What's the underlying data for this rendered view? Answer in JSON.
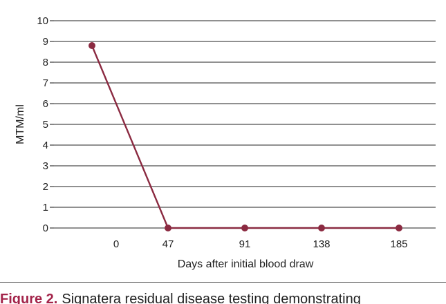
{
  "chart_data": {
    "type": "line",
    "xlabel": "Days after initial blood draw",
    "ylabel": "MTM/ml",
    "categories": [
      "",
      "0",
      "47",
      "91",
      "138",
      "185"
    ],
    "ylim": [
      0,
      10
    ],
    "yticks": [
      0,
      1,
      2,
      3,
      4,
      5,
      6,
      7,
      8,
      9,
      10
    ],
    "grid": "horizontal",
    "series": [
      {
        "values": [
          8.8,
          null,
          0,
          0,
          0,
          0
        ]
      }
    ]
  },
  "caption": {
    "label": "Figure 2.",
    "text": "Signatera residual disease testing demonstrating"
  },
  "colors": {
    "line": "#8b2a41",
    "grid": "#222222",
    "caption_label": "#a3244a"
  }
}
